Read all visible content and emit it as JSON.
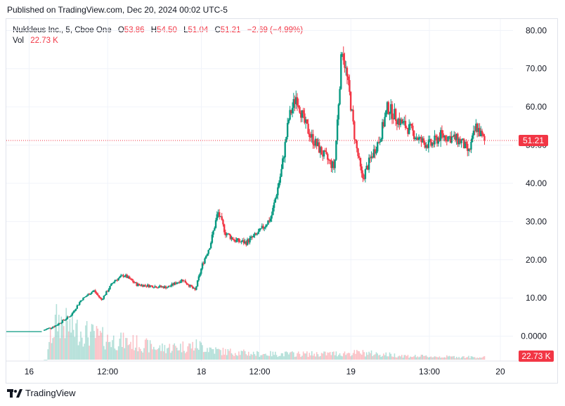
{
  "header": {
    "published": "Published on TradingView.com, Dec 20, 2024 00:02 UTC-5"
  },
  "legend": {
    "symbol": "Nukkleus Inc., 5, Cboe One",
    "o_label": "O",
    "o_value": "53.86",
    "h_label": "H",
    "h_value": "54.50",
    "l_label": "L",
    "l_value": "51.04",
    "c_label": "C",
    "c_value": "51.21",
    "change": "−2.69 (−4.99%)",
    "vol_label": "Vol",
    "vol_value": "22.73 K"
  },
  "footer": {
    "brand": "TradingView"
  },
  "colors": {
    "up": "#089981",
    "down": "#f23645",
    "grid": "#f0f3fa"
  },
  "chart_data": {
    "type": "candlestick",
    "y_ticks": [
      "80.00",
      "70.00",
      "60.00",
      "50.00",
      "40.00",
      "30.00",
      "20.00",
      "10.00",
      "0.0000"
    ],
    "ylim": [
      -6.5,
      83
    ],
    "x_ticks": [
      "16",
      "12:00",
      "18",
      "12:00",
      "19",
      "13:00",
      "20"
    ],
    "last_price": 51.21,
    "last_price_label": "51.21",
    "last_volume_label": "22.73 K",
    "price_path": [
      [
        0,
        1.2
      ],
      [
        0.07,
        1.2
      ],
      [
        0.075,
        1.5
      ],
      [
        0.1,
        2.8
      ],
      [
        0.13,
        5.5
      ],
      [
        0.15,
        9.5
      ],
      [
        0.175,
        12.0
      ],
      [
        0.19,
        9.5
      ],
      [
        0.215,
        14.5
      ],
      [
        0.235,
        16.0
      ],
      [
        0.26,
        13.5
      ],
      [
        0.3,
        13.0
      ],
      [
        0.32,
        12.8
      ],
      [
        0.35,
        14.8
      ],
      [
        0.375,
        12.0
      ],
      [
        0.39,
        19.0
      ],
      [
        0.405,
        24.0
      ],
      [
        0.42,
        32.5
      ],
      [
        0.435,
        27.0
      ],
      [
        0.455,
        25.0
      ],
      [
        0.475,
        24.5
      ],
      [
        0.5,
        27.0
      ],
      [
        0.525,
        31.0
      ],
      [
        0.545,
        43.0
      ],
      [
        0.56,
        57.0
      ],
      [
        0.575,
        63.0
      ],
      [
        0.59,
        56.0
      ],
      [
        0.605,
        52.0
      ],
      [
        0.625,
        48.0
      ],
      [
        0.65,
        44.0
      ],
      [
        0.665,
        76.0
      ],
      [
        0.68,
        63.0
      ],
      [
        0.69,
        52.0
      ],
      [
        0.705,
        41.0
      ],
      [
        0.72,
        46.0
      ],
      [
        0.74,
        52.0
      ],
      [
        0.755,
        60.0
      ],
      [
        0.78,
        56.0
      ],
      [
        0.8,
        54.0
      ],
      [
        0.82,
        51.0
      ],
      [
        0.84,
        50.0
      ],
      [
        0.86,
        52.5
      ],
      [
        0.88,
        52.0
      ],
      [
        0.9,
        51.0
      ],
      [
        0.915,
        48.0
      ],
      [
        0.93,
        55.0
      ],
      [
        0.945,
        51.21
      ]
    ],
    "volume_profile": [
      [
        0.08,
        0.2
      ],
      [
        0.1,
        0.7
      ],
      [
        0.13,
        0.55
      ],
      [
        0.2,
        0.35
      ],
      [
        0.25,
        0.3
      ],
      [
        0.3,
        0.2
      ],
      [
        0.38,
        0.25
      ],
      [
        0.42,
        0.15
      ],
      [
        0.5,
        0.1
      ],
      [
        0.62,
        0.1
      ],
      [
        0.7,
        0.12
      ],
      [
        0.8,
        0.06
      ],
      [
        0.95,
        0.04
      ]
    ]
  }
}
